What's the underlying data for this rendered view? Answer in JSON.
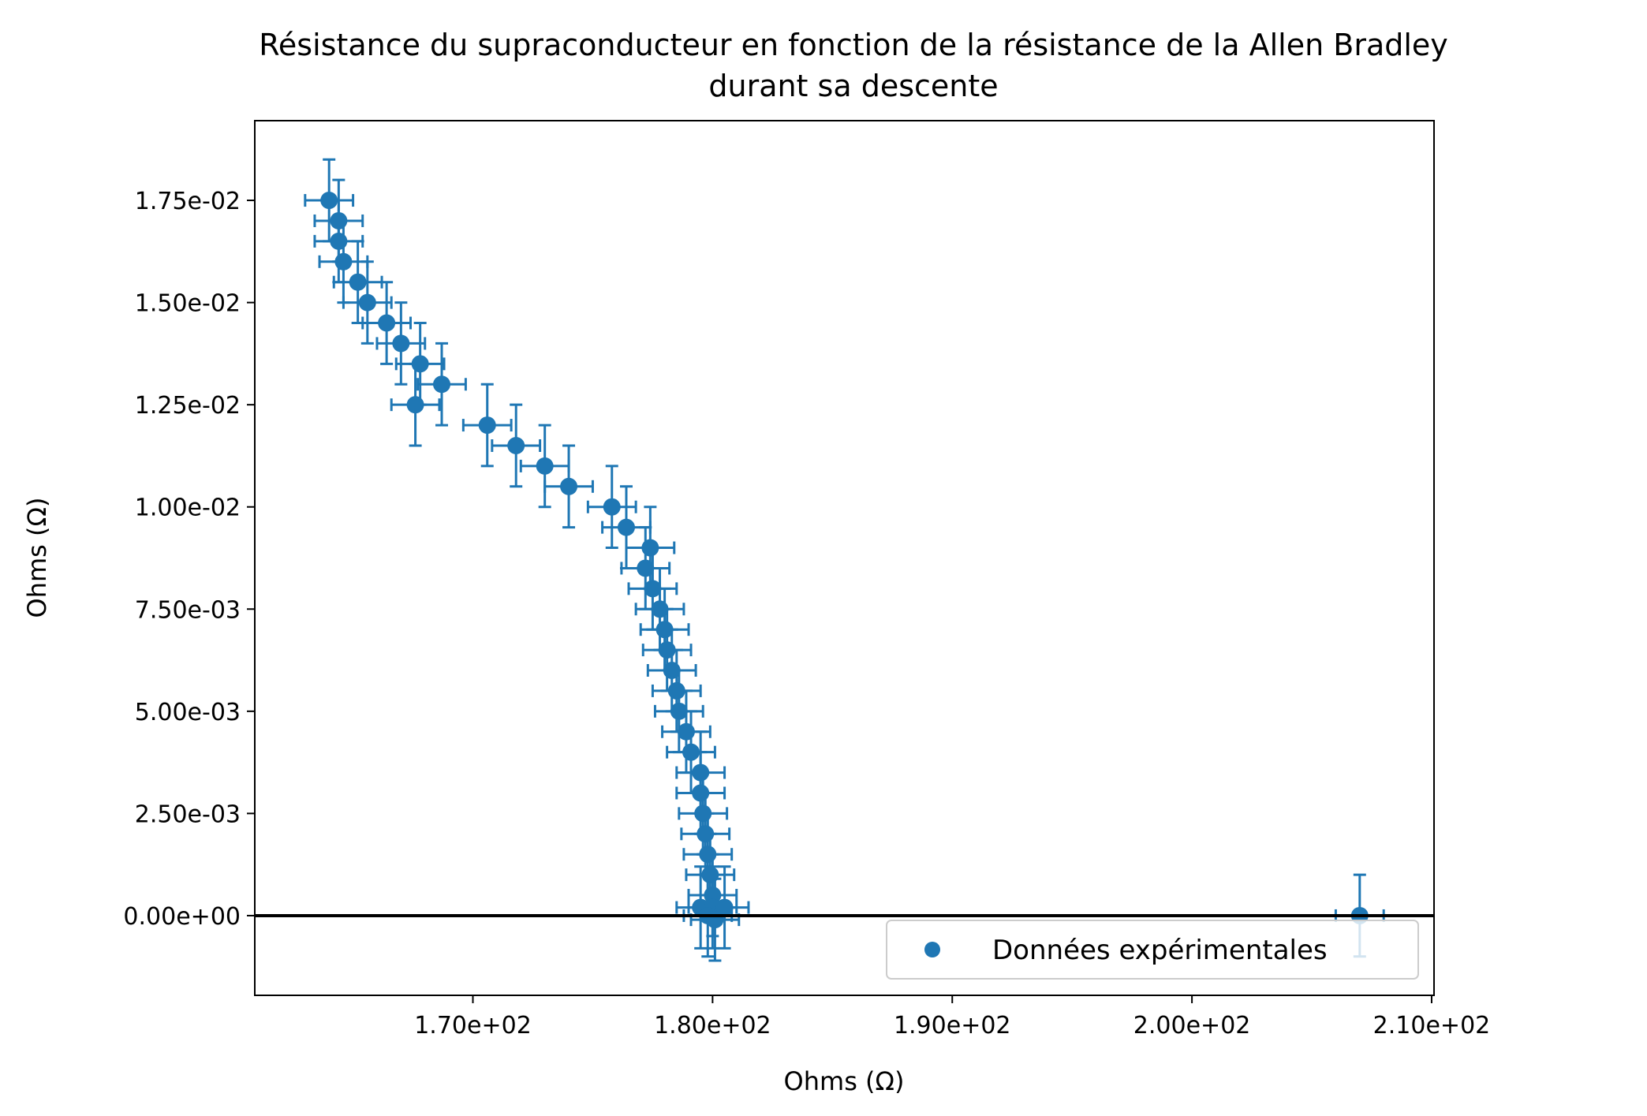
{
  "chart_data": {
    "type": "scatter",
    "title": "Résistance du supraconducteur en fonction de la résistance de la Allen Bradley",
    "subtitle": "durant sa descente",
    "xlabel": "Ohms (Ω)",
    "ylabel": "Ohms (Ω)",
    "xlim": [
      160.9,
      210.1
    ],
    "ylim": [
      -0.00195,
      0.01945
    ],
    "x_ticks": [
      170,
      180,
      190,
      200,
      210
    ],
    "x_tick_labels": [
      "1.70e+02",
      "1.80e+02",
      "1.90e+02",
      "2.00e+02",
      "2.10e+02"
    ],
    "y_ticks": [
      0,
      0.0025,
      0.005,
      0.0075,
      0.01,
      0.0125,
      0.015,
      0.0175
    ],
    "y_tick_labels": [
      "0.00e+00",
      "2.50e-03",
      "5.00e-03",
      "7.50e-03",
      "1.00e-02",
      "1.25e-02",
      "1.50e-02",
      "1.75e-02"
    ],
    "grid": false,
    "legend_position": "lower right",
    "horizontal_line_y": 0,
    "color": "#1f77b4",
    "line_color": "#000000",
    "series": [
      {
        "name": "Données expérimentales",
        "x_err": 1.0,
        "y_err": 0.001,
        "points": [
          [
            164.0,
            0.0175
          ],
          [
            164.4,
            0.017
          ],
          [
            164.4,
            0.0165
          ],
          [
            164.6,
            0.016
          ],
          [
            165.2,
            0.0155
          ],
          [
            165.6,
            0.015
          ],
          [
            166.4,
            0.0145
          ],
          [
            167.0,
            0.014
          ],
          [
            167.8,
            0.0135
          ],
          [
            167.6,
            0.0125
          ],
          [
            168.7,
            0.013
          ],
          [
            170.6,
            0.012
          ],
          [
            171.8,
            0.0115
          ],
          [
            173.0,
            0.011
          ],
          [
            174.0,
            0.0105
          ],
          [
            175.8,
            0.01
          ],
          [
            176.4,
            0.0095
          ],
          [
            177.4,
            0.009
          ],
          [
            177.2,
            0.0085
          ],
          [
            177.5,
            0.008
          ],
          [
            177.8,
            0.0075
          ],
          [
            178.0,
            0.007
          ],
          [
            178.1,
            0.0065
          ],
          [
            178.3,
            0.006
          ],
          [
            178.5,
            0.0055
          ],
          [
            178.6,
            0.005
          ],
          [
            178.9,
            0.0045
          ],
          [
            179.1,
            0.004
          ],
          [
            179.5,
            0.0035
          ],
          [
            179.5,
            0.003
          ],
          [
            179.6,
            0.0025
          ],
          [
            179.7,
            0.002
          ],
          [
            179.8,
            0.0015
          ],
          [
            179.9,
            0.001
          ],
          [
            180.0,
            0.0005
          ],
          [
            179.5,
            0.0002
          ],
          [
            180.0,
            0.0002
          ],
          [
            180.5,
            0.0002
          ],
          [
            179.8,
            0.0
          ],
          [
            180.1,
            -0.0001
          ],
          [
            207.0,
            0.0
          ]
        ]
      }
    ]
  }
}
